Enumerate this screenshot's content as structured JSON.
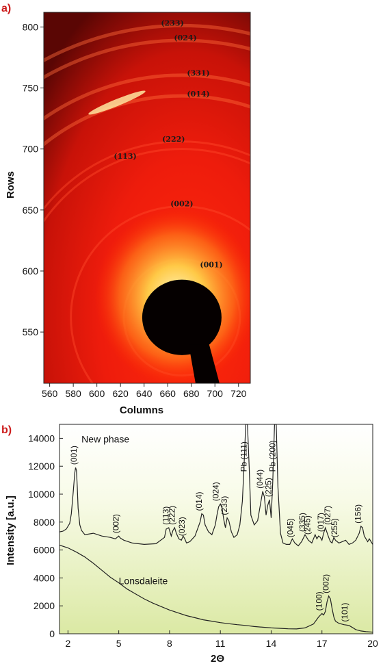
{
  "chart_data": [
    {
      "panel": "a)",
      "type": "heatmap",
      "xlabel": "Columns",
      "ylabel": "Rows",
      "xlim": [
        555,
        730
      ],
      "ylim": [
        508,
        812
      ],
      "xticks": [
        560,
        580,
        600,
        620,
        640,
        660,
        680,
        700,
        720
      ],
      "yticks": [
        550,
        600,
        650,
        700,
        750,
        800
      ],
      "beam_center": [
        672,
        562
      ],
      "rings": [
        {
          "label": "(233)",
          "x": 664,
          "y": 801
        },
        {
          "label": "(024)",
          "x": 675,
          "y": 789
        },
        {
          "label": "(331)",
          "x": 686,
          "y": 760
        },
        {
          "label": "(014)",
          "x": 686,
          "y": 743
        },
        {
          "label": "(222)",
          "x": 665,
          "y": 706
        },
        {
          "label": "(113)",
          "x": 624,
          "y": 692
        },
        {
          "label": "(002)",
          "x": 672,
          "y": 653
        },
        {
          "label": "(001)",
          "x": 697,
          "y": 603
        }
      ]
    },
    {
      "panel": "b)",
      "type": "line",
      "xlabel": "2Θ",
      "ylabel": "Intensity [a.u.]",
      "xlim": [
        1.5,
        20
      ],
      "ylim": [
        0,
        15000
      ],
      "xticks": [
        2,
        5,
        8,
        11,
        14,
        17,
        20
      ],
      "xtick_labels": [
        "2",
        "5",
        "8",
        "11",
        "14",
        "17",
        "20"
      ],
      "yticks": [
        0,
        2000,
        4000,
        6000,
        8000,
        10000,
        12000,
        14000
      ],
      "series": [
        {
          "name": "New phase",
          "x": [
            1.5,
            1.7,
            1.9,
            2.1,
            2.2,
            2.3,
            2.4,
            2.45,
            2.5,
            2.55,
            2.6,
            2.7,
            2.8,
            3.0,
            3.5,
            4.0,
            4.5,
            4.8,
            4.9,
            5.0,
            5.1,
            5.3,
            5.8,
            6.5,
            7.2,
            7.7,
            7.8,
            7.95,
            8.1,
            8.2,
            8.3,
            8.4,
            8.55,
            8.7,
            8.8,
            8.9,
            9.0,
            9.2,
            9.5,
            9.8,
            9.9,
            10.0,
            10.1,
            10.3,
            10.5,
            10.7,
            10.8,
            10.9,
            11.0,
            11.1,
            11.2,
            11.3,
            11.4,
            11.5,
            11.65,
            11.8,
            12.0,
            12.15,
            12.3,
            12.4,
            12.5,
            12.6,
            12.7,
            12.8,
            13.0,
            13.2,
            13.4,
            13.5,
            13.6,
            13.7,
            13.8,
            13.9,
            14.0,
            14.1,
            14.2,
            14.3,
            14.4,
            14.55,
            14.7,
            14.9,
            15.1,
            15.25,
            15.4,
            15.6,
            15.8,
            16.0,
            16.1,
            16.2,
            16.4,
            16.6,
            16.7,
            16.8,
            16.9,
            17.0,
            17.1,
            17.2,
            17.4,
            17.5,
            17.6,
            17.7,
            17.8,
            18.0,
            18.2,
            18.4,
            18.6,
            18.8,
            19.0,
            19.2,
            19.3,
            19.4,
            19.5,
            19.7,
            19.8,
            20.0
          ],
          "y": [
            7300,
            7350,
            7500,
            7900,
            8600,
            10000,
            11500,
            11900,
            11700,
            10500,
            9000,
            7800,
            7400,
            7100,
            7200,
            7000,
            6900,
            6800,
            6900,
            7000,
            6850,
            6700,
            6500,
            6400,
            6450,
            6900,
            7500,
            7600,
            7000,
            7400,
            7600,
            7200,
            6800,
            6700,
            7000,
            6800,
            6500,
            6600,
            7000,
            8000,
            8600,
            8500,
            7800,
            7300,
            7100,
            7800,
            8500,
            9100,
            9300,
            9000,
            8200,
            7600,
            8300,
            8100,
            7300,
            6900,
            7100,
            7800,
            9500,
            12000,
            15000,
            15000,
            12000,
            8500,
            7800,
            8100,
            9500,
            10200,
            9800,
            8500,
            9200,
            9600,
            8300,
            11000,
            15000,
            15000,
            10500,
            7200,
            6500,
            6400,
            6400,
            6800,
            6500,
            6300,
            6600,
            7100,
            6900,
            6700,
            6500,
            7100,
            6800,
            7000,
            6900,
            6700,
            7200,
            7600,
            6900,
            6600,
            6500,
            6900,
            6700,
            6500,
            6600,
            6700,
            6400,
            6500,
            6700,
            7200,
            7700,
            7600,
            7000,
            6600,
            6800,
            6400
          ]
        },
        {
          "name": "Lonsdaleite",
          "x": [
            1.5,
            2,
            2.5,
            3,
            3.5,
            4,
            4.5,
            5,
            5.5,
            6,
            6.5,
            7,
            7.5,
            8,
            8.5,
            9,
            9.5,
            10,
            10.5,
            11,
            11.5,
            12,
            12.5,
            13,
            13.5,
            14,
            14.5,
            15,
            15.5,
            16,
            16.5,
            16.8,
            17.0,
            17.1,
            17.2,
            17.3,
            17.4,
            17.5,
            17.6,
            17.7,
            17.8,
            18.0,
            18.3,
            18.6,
            18.8,
            19.0,
            19.3,
            19.6,
            20.0
          ],
          "y": [
            6350,
            6150,
            5850,
            5500,
            5050,
            4550,
            4050,
            3650,
            3200,
            2850,
            2500,
            2200,
            1950,
            1700,
            1500,
            1300,
            1150,
            1000,
            900,
            800,
            720,
            650,
            600,
            520,
            470,
            420,
            390,
            360,
            350,
            420,
            700,
            1200,
            1450,
            1350,
            1600,
            2300,
            2700,
            2500,
            1800,
            1200,
            900,
            750,
            650,
            600,
            450,
            300,
            200,
            150,
            120
          ]
        }
      ],
      "peak_labels": [
        {
          "label": "(001)",
          "x": 2.5,
          "y": 12100
        },
        {
          "label": "(002)",
          "x": 5.0,
          "y": 7200
        },
        {
          "label": "(113)",
          "x": 7.95,
          "y": 7800
        },
        {
          "label": "(222)",
          "x": 8.3,
          "y": 7800
        },
        {
          "label": "(023)",
          "x": 8.9,
          "y": 7000
        },
        {
          "label": "(014)",
          "x": 9.9,
          "y": 8800
        },
        {
          "label": "(024)",
          "x": 10.9,
          "y": 9500
        },
        {
          "label": "(233)",
          "x": 11.4,
          "y": 8500
        },
        {
          "label": "Pb (111)",
          "x": 12.55,
          "y": 11600
        },
        {
          "label": "(044)",
          "x": 13.5,
          "y": 10400
        },
        {
          "label": "Pb (200)",
          "x": 14.25,
          "y": 11600
        },
        {
          "label": "(225)",
          "x": 14.0,
          "y": 9800
        },
        {
          "label": "(045)",
          "x": 15.3,
          "y": 6900
        },
        {
          "label": "(335)",
          "x": 16.0,
          "y": 7300
        },
        {
          "label": "(245)",
          "x": 16.3,
          "y": 7100
        },
        {
          "label": "(017)",
          "x": 17.1,
          "y": 7300
        },
        {
          "label": "(027)",
          "x": 17.5,
          "y": 7800
        },
        {
          "label": "(255)",
          "x": 17.9,
          "y": 6900
        },
        {
          "label": "(156)",
          "x": 19.3,
          "y": 7900
        },
        {
          "label": "(100)",
          "x": 17.0,
          "y": 1650
        },
        {
          "label": "(002)",
          "x": 17.4,
          "y": 2900
        },
        {
          "label": "(101)",
          "x": 18.5,
          "y": 850
        }
      ],
      "series_labels": [
        {
          "label": "New phase",
          "x": 2.8,
          "y": 13700
        },
        {
          "label": "Lonsdaleite",
          "x": 5.0,
          "y": 3550
        }
      ]
    }
  ]
}
